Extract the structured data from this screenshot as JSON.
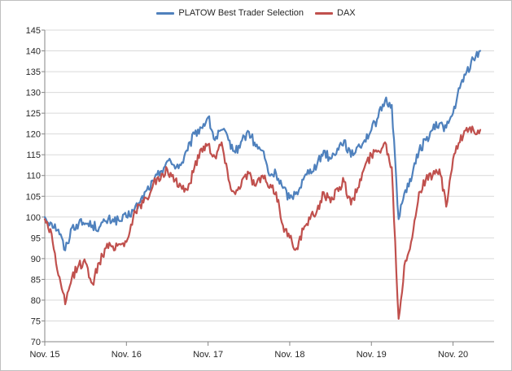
{
  "chart_data": {
    "type": "line",
    "title": "",
    "xlabel": "",
    "ylabel": "",
    "x_ticks": [
      "Nov. 15",
      "Nov. 16",
      "Nov. 17",
      "Nov. 18",
      "Nov. 19",
      "Nov. 20"
    ],
    "x_range": [
      "Nov. 15",
      "Mar. 21"
    ],
    "ylim": [
      70,
      145
    ],
    "y_ticks": [
      70,
      75,
      80,
      85,
      90,
      95,
      100,
      105,
      110,
      115,
      120,
      125,
      130,
      135,
      140,
      145
    ],
    "grid": "horizontal",
    "legend_position": "top",
    "series": [
      {
        "name": "PLATOW Best Trader Selection",
        "color": "#4f81bd",
        "points": [
          [
            "Nov. 15",
            100
          ],
          [
            "Dec. 15",
            98.5
          ],
          [
            "Jan. 16",
            97
          ],
          [
            "Feb. 16",
            92
          ],
          [
            "Mar. 16",
            97.5
          ],
          [
            "Apr. 16",
            98.5
          ],
          [
            "May 16",
            98.5
          ],
          [
            "Jun. 16",
            98
          ],
          [
            "Jul. 16",
            97.5
          ],
          [
            "Aug. 16",
            99
          ],
          [
            "Sep. 16",
            99.5
          ],
          [
            "Oct. 16",
            99
          ],
          [
            "Nov. 16",
            100
          ],
          [
            "Dec. 16",
            101.5
          ],
          [
            "Jan. 17",
            103.5
          ],
          [
            "Feb. 17",
            106.5
          ],
          [
            "Mar. 17",
            108.5
          ],
          [
            "Apr. 17",
            111
          ],
          [
            "May 17",
            113.5
          ],
          [
            "Jun. 17",
            112.5
          ],
          [
            "Jul. 17",
            112.5
          ],
          [
            "Aug. 17",
            116
          ],
          [
            "Sep. 17",
            120
          ],
          [
            "Oct. 17",
            121.5
          ],
          [
            "Nov. 17",
            124
          ],
          [
            "Dec. 17",
            118.5
          ],
          [
            "Jan. 18",
            121
          ],
          [
            "Feb. 18",
            118.5
          ],
          [
            "Mar. 18",
            115.5
          ],
          [
            "Apr. 18",
            118.5
          ],
          [
            "May 18",
            120.5
          ],
          [
            "Jun. 18",
            117
          ],
          [
            "Jul. 18",
            116
          ],
          [
            "Aug. 18",
            110
          ],
          [
            "Sep. 18",
            110.5
          ],
          [
            "Oct. 18",
            107
          ],
          [
            "Nov. 18",
            104.5
          ],
          [
            "Dec. 18",
            106
          ],
          [
            "Jan. 19",
            109
          ],
          [
            "Feb. 19",
            111.5
          ],
          [
            "Mar. 19",
            112.5
          ],
          [
            "Apr. 19",
            116
          ],
          [
            "May 19",
            114
          ],
          [
            "Jun. 19",
            116.5
          ],
          [
            "Jul. 19",
            118.5
          ],
          [
            "Aug. 19",
            114.5
          ],
          [
            "Sep. 19",
            117
          ],
          [
            "Oct. 19",
            118.5
          ],
          [
            "Nov. 19",
            121
          ],
          [
            "Dec. 19",
            124
          ],
          [
            "Jan. 20",
            128
          ],
          [
            "Feb. 20",
            127
          ],
          [
            "Mar. 20",
            99.5
          ],
          [
            "Apr. 20",
            106.5
          ],
          [
            "May 20",
            110
          ],
          [
            "Jun. 20",
            116
          ],
          [
            "Jul. 20",
            118.5
          ],
          [
            "Aug. 20",
            121
          ],
          [
            "Sep. 20",
            122.5
          ],
          [
            "Oct. 20",
            121.5
          ],
          [
            "Nov. 20",
            125
          ],
          [
            "Dec. 20",
            131
          ],
          [
            "Jan. 21",
            135
          ],
          [
            "Feb. 21",
            138
          ],
          [
            "Mar. 21",
            140
          ]
        ]
      },
      {
        "name": "DAX",
        "color": "#c0504d",
        "points": [
          [
            "Nov. 15",
            99.5
          ],
          [
            "Dec. 15",
            96
          ],
          [
            "Jan. 16",
            86
          ],
          [
            "Feb. 16",
            79
          ],
          [
            "Mar. 16",
            85.5
          ],
          [
            "Apr. 16",
            88.5
          ],
          [
            "May 16",
            89
          ],
          [
            "Jun. 16",
            84
          ],
          [
            "Jul. 16",
            89
          ],
          [
            "Aug. 16",
            92.5
          ],
          [
            "Sep. 16",
            93
          ],
          [
            "Oct. 16",
            93.5
          ],
          [
            "Nov. 16",
            94
          ],
          [
            "Dec. 16",
            100
          ],
          [
            "Jan. 17",
            103
          ],
          [
            "Feb. 17",
            104.5
          ],
          [
            "Mar. 17",
            108.5
          ],
          [
            "Apr. 17",
            109
          ],
          [
            "May 17",
            111.5
          ],
          [
            "Jun. 17",
            108.5
          ],
          [
            "Jul. 17",
            107.5
          ],
          [
            "Aug. 17",
            106.5
          ],
          [
            "Sep. 17",
            112
          ],
          [
            "Oct. 17",
            116.5
          ],
          [
            "Nov. 17",
            117.5
          ],
          [
            "Dec. 17",
            114.5
          ],
          [
            "Jan. 18",
            118
          ],
          [
            "Feb. 18",
            109
          ],
          [
            "Mar. 18",
            105.5
          ],
          [
            "Apr. 18",
            109
          ],
          [
            "May 18",
            110.5
          ],
          [
            "Jun. 18",
            107.5
          ],
          [
            "Jul. 18",
            110
          ],
          [
            "Aug. 18",
            107
          ],
          [
            "Sep. 18",
            106
          ],
          [
            "Oct. 18",
            98
          ],
          [
            "Nov. 18",
            95
          ],
          [
            "Dec. 18",
            92.5
          ],
          [
            "Jan. 19",
            97
          ],
          [
            "Feb. 19",
            99.5
          ],
          [
            "Mar. 19",
            101.5
          ],
          [
            "Apr. 19",
            106
          ],
          [
            "May 19",
            103.5
          ],
          [
            "Jun. 19",
            107
          ],
          [
            "Jul. 19",
            108.5
          ],
          [
            "Aug. 19",
            103
          ],
          [
            "Sep. 19",
            107
          ],
          [
            "Oct. 19",
            112
          ],
          [
            "Nov. 19",
            115
          ],
          [
            "Dec. 19",
            116
          ],
          [
            "Jan. 20",
            118
          ],
          [
            "Feb. 20",
            112
          ],
          [
            "Mar. 20",
            75.5
          ],
          [
            "Apr. 20",
            89.5
          ],
          [
            "May 20",
            95
          ],
          [
            "Jun. 20",
            106
          ],
          [
            "Jul. 20",
            109
          ],
          [
            "Aug. 20",
            110
          ],
          [
            "Sep. 20",
            111.5
          ],
          [
            "Oct. 20",
            102.5
          ],
          [
            "Nov. 20",
            114
          ],
          [
            "Dec. 20",
            118
          ],
          [
            "Jan. 21",
            121.5
          ],
          [
            "Feb. 21",
            121
          ],
          [
            "Mar. 21",
            121
          ]
        ]
      }
    ]
  }
}
